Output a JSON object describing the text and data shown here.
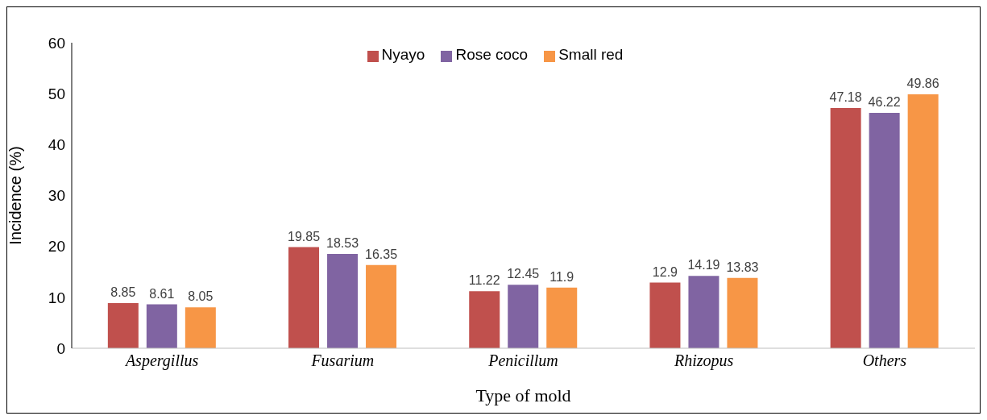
{
  "chart_data": {
    "type": "bar",
    "xlabel": "Type of mold",
    "ylabel": "Incidence (%)",
    "categories": [
      "Aspergillus",
      "Fusarium",
      "Penicillum",
      "Rhizopus",
      "Others"
    ],
    "series": [
      {
        "name": "Nyayo",
        "color": "#c0504d",
        "values": [
          8.85,
          19.85,
          11.22,
          12.9,
          47.18
        ]
      },
      {
        "name": "Rose coco",
        "color": "#8064a2",
        "values": [
          8.61,
          18.53,
          12.45,
          14.19,
          46.22
        ]
      },
      {
        "name": "Small red",
        "color": "#f79646",
        "values": [
          8.05,
          16.35,
          11.9,
          13.83,
          49.86
        ]
      }
    ],
    "ylim": [
      0,
      60
    ],
    "yticks": [
      0,
      10,
      20,
      30,
      40,
      50,
      60
    ],
    "grid": false,
    "legend": "top",
    "data_labels": true
  }
}
